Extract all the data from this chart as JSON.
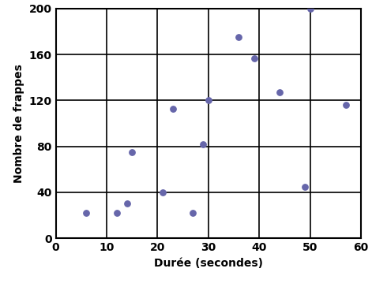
{
  "xlabel": "Durée (secondes)",
  "ylabel": "Nombre de frappes",
  "xlim": [
    0,
    60
  ],
  "ylim": [
    0,
    200
  ],
  "xticks": [
    0,
    10,
    20,
    30,
    40,
    50,
    60
  ],
  "yticks": [
    0,
    40,
    80,
    120,
    160,
    200
  ],
  "x": [
    6,
    12,
    14,
    15,
    21,
    23,
    27,
    29,
    30,
    36,
    39,
    44,
    49,
    50,
    57
  ],
  "y": [
    22,
    22,
    30,
    75,
    40,
    113,
    22,
    82,
    120,
    175,
    157,
    127,
    45,
    200,
    116
  ],
  "dot_color": "#6666AA",
  "dot_size": 28,
  "background_color": "#ffffff",
  "grid_color": "#000000",
  "label_fontsize": 10,
  "tick_fontsize": 10
}
